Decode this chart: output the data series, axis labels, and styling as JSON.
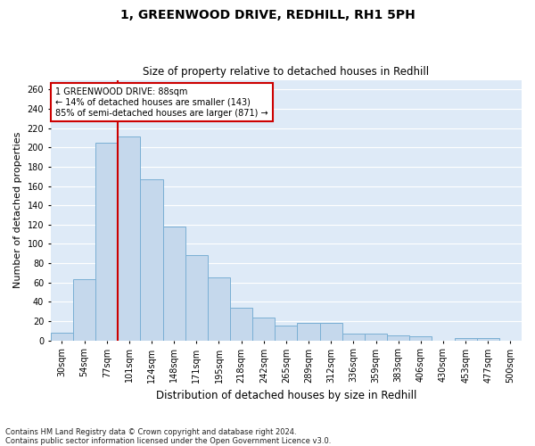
{
  "title": "1, GREENWOOD DRIVE, REDHILL, RH1 5PH",
  "subtitle": "Size of property relative to detached houses in Redhill",
  "xlabel": "Distribution of detached houses by size in Redhill",
  "ylabel": "Number of detached properties",
  "footnote": "Contains HM Land Registry data © Crown copyright and database right 2024.\nContains public sector information licensed under the Open Government Licence v3.0.",
  "bar_labels": [
    "30sqm",
    "54sqm",
    "77sqm",
    "101sqm",
    "124sqm",
    "148sqm",
    "171sqm",
    "195sqm",
    "218sqm",
    "242sqm",
    "265sqm",
    "289sqm",
    "312sqm",
    "336sqm",
    "359sqm",
    "383sqm",
    "406sqm",
    "430sqm",
    "453sqm",
    "477sqm",
    "500sqm"
  ],
  "bar_values": [
    8,
    63,
    205,
    211,
    167,
    118,
    88,
    65,
    34,
    24,
    15,
    18,
    18,
    7,
    7,
    5,
    4,
    0,
    2,
    2,
    0
  ],
  "bar_color": "#c5d8ec",
  "bar_edge_color": "#7aafd4",
  "background_color": "#deeaf7",
  "grid_color": "#ffffff",
  "annotation_box_text": "1 GREENWOOD DRIVE: 88sqm\n← 14% of detached houses are smaller (143)\n85% of semi-detached houses are larger (871) →",
  "vline_color": "#cc0000",
  "vline_pos": 2.5,
  "ylim": [
    0,
    270
  ],
  "yticks": [
    0,
    20,
    40,
    60,
    80,
    100,
    120,
    140,
    160,
    180,
    200,
    220,
    240,
    260
  ],
  "title_fontsize": 10,
  "subtitle_fontsize": 8.5,
  "ylabel_fontsize": 8,
  "xlabel_fontsize": 8.5,
  "tick_fontsize": 7,
  "footnote_fontsize": 6,
  "annot_fontsize": 7
}
